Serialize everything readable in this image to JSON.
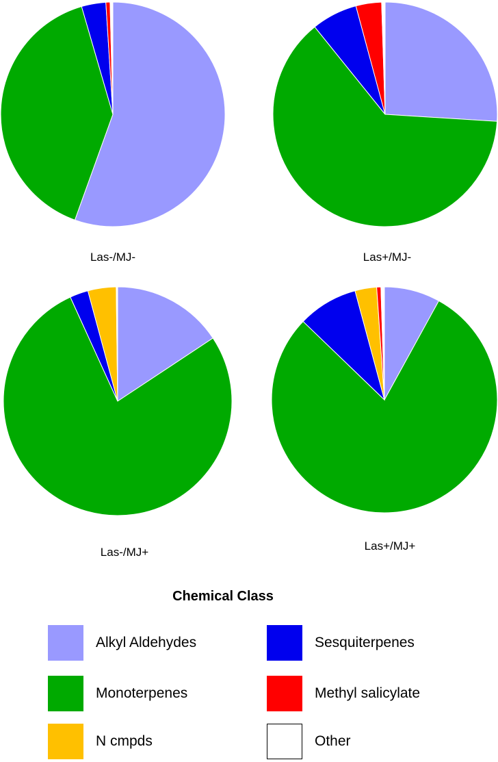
{
  "chart_data": [
    {
      "type": "pie",
      "label": "Las-/MJ-",
      "categories": [
        "Alkyl Aldehydes",
        "Monoterpenes",
        "Sesquiterpenes",
        "N cmpds",
        "Methyl salicylate",
        "Other"
      ],
      "values": [
        55.5,
        40.0,
        3.5,
        0.0,
        0.6,
        0.4
      ]
    },
    {
      "type": "pie",
      "label": "Las+/MJ-",
      "categories": [
        "Alkyl Aldehydes",
        "Monoterpenes",
        "Sesquiterpenes",
        "N cmpds",
        "Methyl salicylate",
        "Other"
      ],
      "values": [
        26.0,
        63.2,
        6.6,
        0.0,
        3.7,
        0.5
      ]
    },
    {
      "type": "pie",
      "label": "Las-/MJ+",
      "categories": [
        "Alkyl Aldehydes",
        "Monoterpenes",
        "Sesquiterpenes",
        "N cmpds",
        "Methyl salicylate",
        "Other"
      ],
      "values": [
        15.7,
        77.5,
        2.6,
        4.0,
        0.0,
        0.2
      ]
    },
    {
      "type": "pie",
      "label": "Las+/MJ+",
      "categories": [
        "Alkyl Aldehydes",
        "Monoterpenes",
        "Sesquiterpenes",
        "N cmpds",
        "Methyl salicylate",
        "Other"
      ],
      "values": [
        8.0,
        79.2,
        8.6,
        3.1,
        0.6,
        0.5
      ]
    }
  ],
  "legend": {
    "title": "Chemical Class",
    "placement": "bottom",
    "items": [
      {
        "label": "Alkyl Aldehydes",
        "color": "#9999FF"
      },
      {
        "label": "Sesquiterpenes",
        "color": "#0000EE"
      },
      {
        "label": "Monoterpenes",
        "color": "#00AA00"
      },
      {
        "label": "Methyl salicylate",
        "color": "#FF0000"
      },
      {
        "label": "N cmpds",
        "color": "#FFC000"
      },
      {
        "label": "Other",
        "color": "#FFFFFF"
      }
    ]
  }
}
